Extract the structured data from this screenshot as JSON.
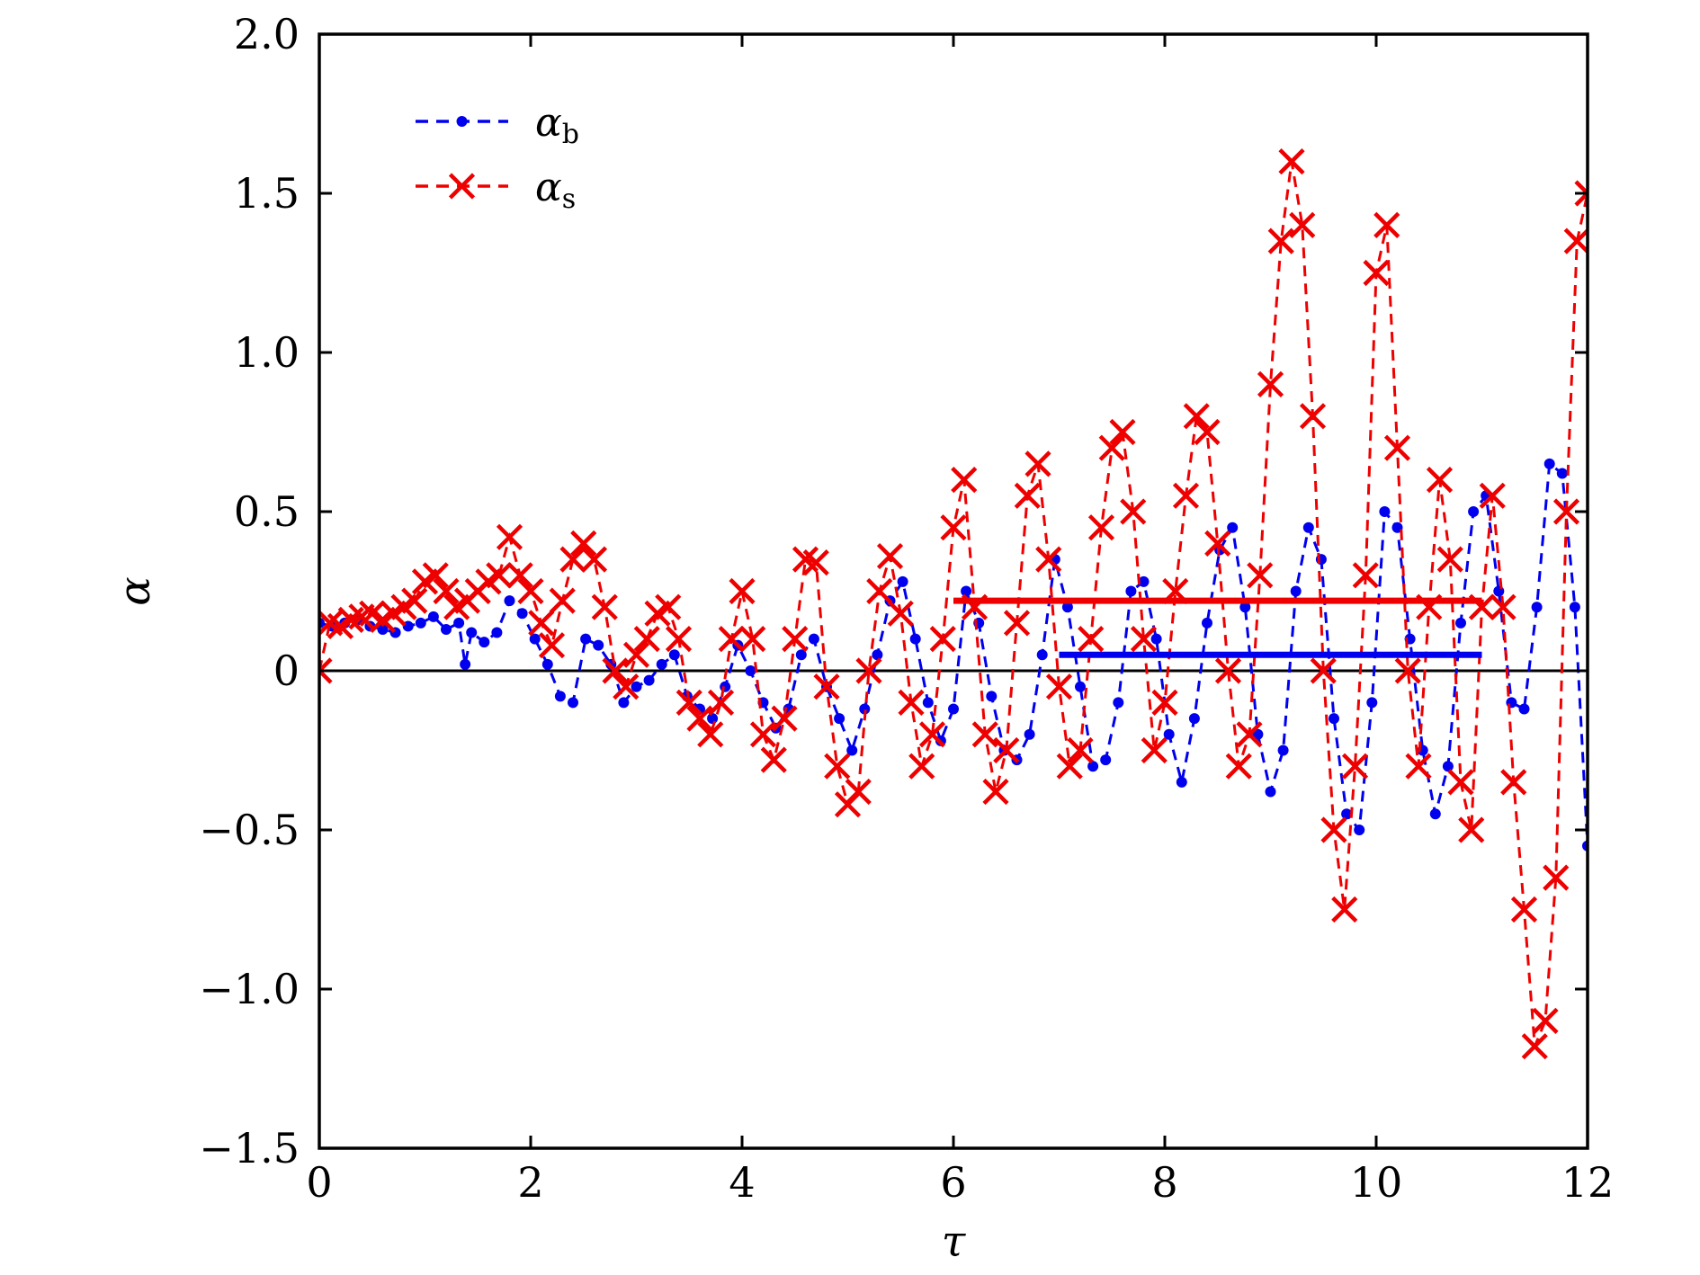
{
  "chart_data": {
    "type": "scatter",
    "xlabel": "τ",
    "ylabel": "α",
    "xlim": [
      0,
      12
    ],
    "ylim": [
      -1.5,
      2.0
    ],
    "x_ticks": [
      0,
      2,
      4,
      6,
      8,
      10,
      12
    ],
    "x_tick_labels": [
      "0",
      "2",
      "4",
      "6",
      "8",
      "10",
      "12"
    ],
    "y_ticks": [
      -1.5,
      -1.0,
      -0.5,
      0,
      0.5,
      1.0,
      1.5,
      2.0
    ],
    "y_tick_labels": [
      "−1.5",
      "−1.0",
      "−0.5",
      "0",
      "0.5",
      "1.0",
      "1.5",
      "2.0"
    ],
    "legend_position": "top-left",
    "grid": false,
    "zero_line": true,
    "series": [
      {
        "name": "α",
        "name_sub": "b",
        "color": "#0000ee",
        "marker": "dot",
        "line": "dashed",
        "mean": {
          "value": 0.05,
          "x_range": [
            7,
            11
          ]
        },
        "x": [
          0.0,
          0.12,
          0.24,
          0.36,
          0.48,
          0.6,
          0.72,
          0.84,
          0.96,
          1.08,
          1.2,
          1.32,
          1.38,
          1.44,
          1.56,
          1.68,
          1.8,
          1.92,
          2.04,
          2.16,
          2.28,
          2.4,
          2.52,
          2.64,
          2.76,
          2.88,
          3.0,
          3.12,
          3.24,
          3.36,
          3.48,
          3.6,
          3.72,
          3.84,
          3.96,
          4.08,
          4.2,
          4.32,
          4.44,
          4.56,
          4.68,
          4.8,
          4.92,
          5.04,
          5.16,
          5.28,
          5.4,
          5.52,
          5.64,
          5.76,
          5.88,
          6.0,
          6.12,
          6.24,
          6.36,
          6.48,
          6.6,
          6.72,
          6.84,
          6.96,
          7.08,
          7.2,
          7.32,
          7.44,
          7.56,
          7.68,
          7.8,
          7.92,
          8.04,
          8.16,
          8.28,
          8.4,
          8.52,
          8.64,
          8.76,
          8.88,
          9.0,
          9.12,
          9.24,
          9.36,
          9.48,
          9.6,
          9.72,
          9.84,
          9.96,
          10.08,
          10.2,
          10.32,
          10.44,
          10.56,
          10.68,
          10.8,
          10.92,
          11.04,
          11.16,
          11.28,
          11.4,
          11.52,
          11.64,
          11.76,
          11.88,
          12.0
        ],
        "y": [
          0.15,
          0.14,
          0.15,
          0.16,
          0.14,
          0.13,
          0.12,
          0.14,
          0.15,
          0.17,
          0.13,
          0.15,
          0.02,
          0.12,
          0.09,
          0.12,
          0.22,
          0.18,
          0.1,
          0.02,
          -0.08,
          -0.1,
          0.1,
          0.08,
          0.02,
          -0.1,
          -0.05,
          -0.03,
          0.02,
          0.05,
          -0.08,
          -0.12,
          -0.15,
          -0.05,
          0.08,
          0.0,
          -0.1,
          -0.18,
          -0.12,
          0.05,
          0.1,
          -0.05,
          -0.15,
          -0.25,
          -0.12,
          0.05,
          0.22,
          0.28,
          0.1,
          -0.1,
          -0.22,
          -0.12,
          0.25,
          0.15,
          -0.08,
          -0.25,
          -0.28,
          -0.2,
          0.05,
          0.35,
          0.2,
          -0.05,
          -0.3,
          -0.28,
          -0.1,
          0.25,
          0.28,
          0.1,
          -0.2,
          -0.35,
          -0.15,
          0.15,
          0.38,
          0.45,
          0.2,
          -0.2,
          -0.38,
          -0.25,
          0.25,
          0.45,
          0.35,
          -0.15,
          -0.45,
          -0.5,
          -0.1,
          0.5,
          0.45,
          0.1,
          -0.25,
          -0.45,
          -0.3,
          0.15,
          0.5,
          0.55,
          0.25,
          -0.1,
          -0.12,
          0.2,
          0.65,
          0.62,
          0.2,
          -0.55
        ]
      },
      {
        "name": "α",
        "name_sub": "s",
        "color": "#ee0000",
        "marker": "x",
        "line": "dashed",
        "mean": {
          "value": 0.22,
          "x_range": [
            6,
            11
          ]
        },
        "x": [
          0.0,
          0.1,
          0.2,
          0.3,
          0.4,
          0.5,
          0.6,
          0.7,
          0.8,
          0.9,
          1.0,
          1.1,
          1.2,
          1.3,
          1.4,
          1.5,
          1.6,
          1.7,
          1.8,
          1.9,
          2.0,
          2.1,
          2.2,
          2.3,
          2.4,
          2.5,
          2.6,
          2.7,
          2.8,
          2.9,
          3.0,
          3.1,
          3.2,
          3.3,
          3.4,
          3.5,
          3.6,
          3.7,
          3.8,
          3.9,
          4.0,
          4.1,
          4.2,
          4.3,
          4.4,
          4.5,
          4.6,
          4.7,
          4.8,
          4.9,
          5.0,
          5.1,
          5.2,
          5.3,
          5.4,
          5.5,
          5.6,
          5.7,
          5.8,
          5.9,
          6.0,
          6.1,
          6.2,
          6.3,
          6.4,
          6.5,
          6.6,
          6.7,
          6.8,
          6.9,
          7.0,
          7.1,
          7.2,
          7.3,
          7.4,
          7.5,
          7.6,
          7.7,
          7.8,
          7.9,
          8.0,
          8.1,
          8.2,
          8.3,
          8.4,
          8.5,
          8.6,
          8.7,
          8.8,
          8.9,
          9.0,
          9.1,
          9.2,
          9.3,
          9.4,
          9.5,
          9.6,
          9.7,
          9.8,
          9.9,
          10.0,
          10.1,
          10.2,
          10.3,
          10.4,
          10.5,
          10.6,
          10.7,
          10.8,
          10.9,
          11.0,
          11.1,
          11.2,
          11.3,
          11.4,
          11.5,
          11.6,
          11.7,
          11.8,
          11.9,
          12.0
        ],
        "y": [
          0.0,
          0.15,
          0.14,
          0.16,
          0.17,
          0.18,
          0.16,
          0.18,
          0.2,
          0.22,
          0.28,
          0.3,
          0.25,
          0.2,
          0.22,
          0.25,
          0.28,
          0.3,
          0.42,
          0.3,
          0.25,
          0.15,
          0.08,
          0.22,
          0.35,
          0.4,
          0.35,
          0.2,
          0.0,
          -0.05,
          0.05,
          0.1,
          0.18,
          0.2,
          0.1,
          -0.1,
          -0.15,
          -0.2,
          -0.1,
          0.1,
          0.25,
          0.1,
          -0.2,
          -0.28,
          -0.15,
          0.1,
          0.35,
          0.34,
          -0.05,
          -0.3,
          -0.42,
          -0.38,
          0.0,
          0.25,
          0.36,
          0.18,
          -0.1,
          -0.3,
          -0.2,
          0.1,
          0.45,
          0.6,
          0.2,
          -0.2,
          -0.38,
          -0.25,
          0.15,
          0.55,
          0.65,
          0.35,
          -0.05,
          -0.3,
          -0.25,
          0.1,
          0.45,
          0.7,
          0.75,
          0.5,
          0.1,
          -0.25,
          -0.1,
          0.25,
          0.55,
          0.8,
          0.75,
          0.4,
          0.0,
          -0.3,
          -0.2,
          0.3,
          0.9,
          1.35,
          1.6,
          1.4,
          0.8,
          0.0,
          -0.5,
          -0.75,
          -0.3,
          0.3,
          1.25,
          1.4,
          0.7,
          0.0,
          -0.3,
          0.2,
          0.6,
          0.35,
          -0.35,
          -0.5,
          0.2,
          0.55,
          0.2,
          -0.35,
          -0.75,
          -1.18,
          -1.1,
          -0.65,
          0.5,
          1.35,
          1.5
        ]
      }
    ]
  }
}
